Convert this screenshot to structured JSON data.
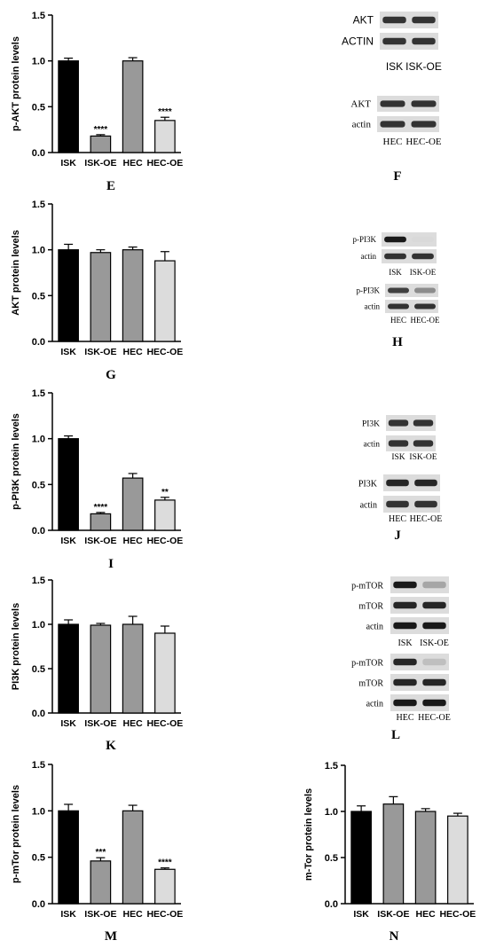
{
  "chart_data": [
    {
      "type": "bar",
      "panel": "E",
      "ylabel": "p-AKT protein levels",
      "categories": [
        "ISK",
        "ISK-OE",
        "HEC",
        "HEC-OE"
      ],
      "values": [
        1.0,
        0.18,
        1.0,
        0.35
      ],
      "errors": [
        0.03,
        0.015,
        0.035,
        0.035
      ],
      "significance": [
        "",
        "****",
        "",
        "****"
      ],
      "ylim": [
        0,
        1.5
      ],
      "yticks": [
        "0.0",
        "0.5",
        "1.0",
        "1.5"
      ],
      "colors": [
        "#000000",
        "#999999",
        "#999999",
        "#dcdcdc"
      ]
    },
    {
      "type": "bar",
      "panel": "G",
      "ylabel": "AKT protein levels",
      "categories": [
        "ISK",
        "ISK-OE",
        "HEC",
        "HEC-OE"
      ],
      "values": [
        1.0,
        0.97,
        1.0,
        0.88
      ],
      "errors": [
        0.06,
        0.03,
        0.03,
        0.1
      ],
      "significance": [
        "",
        "",
        "",
        ""
      ],
      "ylim": [
        0,
        1.5
      ],
      "yticks": [
        "0.0",
        "0.5",
        "1.0",
        "1.5"
      ],
      "colors": [
        "#000000",
        "#999999",
        "#999999",
        "#dcdcdc"
      ]
    },
    {
      "type": "bar",
      "panel": "I",
      "ylabel": "p-PI3K protein levels",
      "categories": [
        "ISK",
        "ISK-OE",
        "HEC",
        "HEC-OE"
      ],
      "values": [
        1.0,
        0.18,
        0.57,
        0.33
      ],
      "errors": [
        0.03,
        0.015,
        0.05,
        0.03
      ],
      "significance": [
        "",
        "****",
        "",
        "**"
      ],
      "ylim": [
        0,
        1.5
      ],
      "yticks": [
        "0.0",
        "0.5",
        "1.0",
        "1.5"
      ],
      "colors": [
        "#000000",
        "#999999",
        "#999999",
        "#dcdcdc"
      ]
    },
    {
      "type": "bar",
      "panel": "K",
      "ylabel": "PI3K protein levels",
      "categories": [
        "ISK",
        "ISK-OE",
        "HEC",
        "HEC-OE"
      ],
      "values": [
        1.0,
        0.99,
        1.0,
        0.9
      ],
      "errors": [
        0.05,
        0.02,
        0.09,
        0.08
      ],
      "significance": [
        "",
        "",
        "",
        ""
      ],
      "ylim": [
        0,
        1.5
      ],
      "yticks": [
        "0.0",
        "0.5",
        "1.0",
        "1.5"
      ],
      "colors": [
        "#000000",
        "#999999",
        "#999999",
        "#dcdcdc"
      ]
    },
    {
      "type": "bar",
      "panel": "M",
      "ylabel": "p-mTor protein levels",
      "categories": [
        "ISK",
        "ISK-OE",
        "HEC",
        "HEC-OE"
      ],
      "values": [
        1.0,
        0.46,
        1.0,
        0.37
      ],
      "errors": [
        0.07,
        0.035,
        0.06,
        0.015
      ],
      "significance": [
        "",
        "***",
        "",
        "****"
      ],
      "ylim": [
        0,
        1.5
      ],
      "yticks": [
        "0.0",
        "0.5",
        "1.0",
        "1.5"
      ],
      "colors": [
        "#000000",
        "#999999",
        "#999999",
        "#dcdcdc"
      ]
    },
    {
      "type": "bar",
      "panel": "N",
      "ylabel": "m-Tor protein levels",
      "categories": [
        "ISK",
        "ISK-OE",
        "HEC",
        "HEC-OE"
      ],
      "values": [
        1.0,
        1.08,
        1.0,
        0.95
      ],
      "errors": [
        0.06,
        0.08,
        0.03,
        0.03
      ],
      "significance": [
        "",
        "",
        "",
        ""
      ],
      "ylim": [
        0,
        1.5
      ],
      "yticks": [
        "0.0",
        "0.5",
        "1.0",
        "1.5"
      ],
      "colors": [
        "#000000",
        "#999999",
        "#999999",
        "#dcdcdc"
      ]
    }
  ],
  "blots": [
    {
      "panel": "F",
      "groups": [
        {
          "font": "sans",
          "bands": [
            {
              "label": "AKT",
              "dark": [
                0.8,
                0.8
              ]
            },
            {
              "label": "ACTIN",
              "dark": [
                0.8,
                0.8
              ]
            }
          ],
          "samples": [
            "ISK",
            "ISK-OE"
          ]
        },
        {
          "font": "serif",
          "bands": [
            {
              "label": "AKT",
              "dark": [
                0.8,
                0.8
              ]
            },
            {
              "label": "actin",
              "dark": [
                0.8,
                0.8
              ]
            }
          ],
          "samples": [
            "HEC",
            "HEC-OE"
          ]
        }
      ]
    },
    {
      "panel": "H",
      "groups": [
        {
          "font": "serif",
          "bands": [
            {
              "label": "p-PI3K",
              "dark": [
                0.9,
                0.15
              ]
            },
            {
              "label": "actin",
              "dark": [
                0.8,
                0.8
              ]
            }
          ],
          "samples": [
            "ISK",
            "ISK-OE"
          ]
        },
        {
          "font": "serif",
          "bands": [
            {
              "label": "p-PI3K",
              "dark": [
                0.75,
                0.45
              ]
            },
            {
              "label": "actin",
              "dark": [
                0.8,
                0.8
              ]
            }
          ],
          "samples": [
            "HEC",
            "HEC-OE"
          ]
        }
      ]
    },
    {
      "panel": "J",
      "groups": [
        {
          "font": "serif",
          "bands": [
            {
              "label": "PI3K",
              "dark": [
                0.8,
                0.8
              ]
            },
            {
              "label": "actin",
              "dark": [
                0.8,
                0.8
              ]
            }
          ],
          "samples": [
            "ISK",
            "ISK-OE"
          ]
        },
        {
          "font": "serif",
          "bands": [
            {
              "label": "PI3K",
              "dark": [
                0.85,
                0.85
              ]
            },
            {
              "label": "actin",
              "dark": [
                0.8,
                0.8
              ]
            }
          ],
          "samples": [
            "HEC",
            "HEC-OE"
          ]
        }
      ]
    },
    {
      "panel": "L",
      "groups": [
        {
          "font": "serif",
          "bands": [
            {
              "label": "p-mTOR",
              "dark": [
                0.9,
                0.35
              ]
            },
            {
              "label": "mTOR",
              "dark": [
                0.85,
                0.85
              ]
            },
            {
              "label": "actin",
              "dark": [
                0.9,
                0.9
              ]
            }
          ],
          "samples": [
            "ISK",
            "ISK-OE"
          ]
        },
        {
          "font": "serif",
          "bands": [
            {
              "label": "p-mTOR",
              "dark": [
                0.85,
                0.25
              ]
            },
            {
              "label": "mTOR",
              "dark": [
                0.85,
                0.85
              ]
            },
            {
              "label": "actin",
              "dark": [
                0.9,
                0.9
              ]
            }
          ],
          "samples": [
            "HEC",
            "HEC-OE"
          ]
        }
      ]
    }
  ]
}
